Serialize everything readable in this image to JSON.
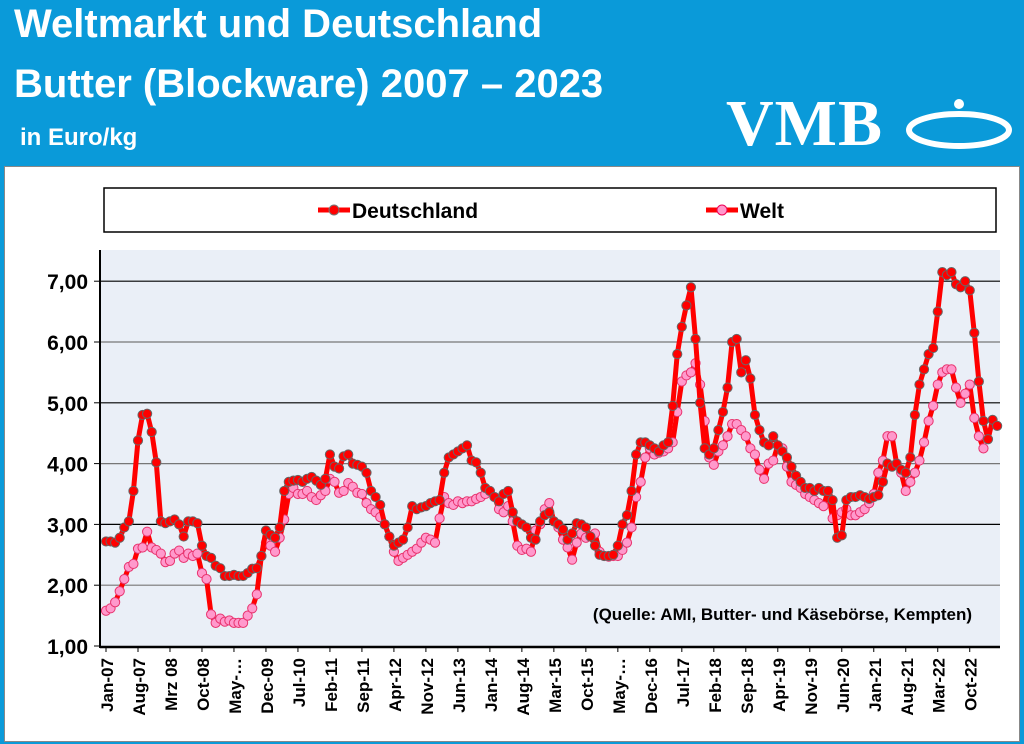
{
  "header": {
    "title_line1": "Weltmarkt und Deutschland",
    "title_line2": "Butter (Blockware) 2007 – 2023",
    "unit": "in Euro/kg",
    "logo_text": "VMB"
  },
  "chart_data": {
    "type": "line",
    "title": "Weltmarkt und Deutschland Butter (Blockware) 2007 – 2023",
    "ylabel": "in Euro/kg",
    "ylim": [
      1,
      7.5
    ],
    "y_ticks": [
      "1,00",
      "2,00",
      "3,00",
      "4,00",
      "5,00",
      "6,00",
      "7,00"
    ],
    "x_tick_labels": [
      "Jan-07",
      "Aug-07",
      "Mrz 08",
      "Oct-08",
      "May-…",
      "Dec-09",
      "Jul-10",
      "Feb-11",
      "Sep-11",
      "Apr-12",
      "Nov-12",
      "Jun-13",
      "Jan-14",
      "Aug-14",
      "Mar-15",
      "Oct-15",
      "May-…",
      "Dec-16",
      "Jul-17",
      "Feb-18",
      "Sep-18",
      "Apr-19",
      "Nov-19",
      "Jun-20",
      "Jan-21",
      "Aug-21",
      "Mar-22",
      "Oct-22"
    ],
    "grid": true,
    "legend_position": "top",
    "annotation": "(Quelle: AMI, Butter- und Käsebörse, Kempten)",
    "series": [
      {
        "name": "Deutschland",
        "color": "#ff0000",
        "values": [
          2.72,
          2.72,
          2.7,
          2.78,
          2.95,
          3.05,
          3.55,
          4.38,
          4.8,
          4.82,
          4.52,
          4.02,
          3.05,
          3.02,
          3.05,
          3.08,
          3.0,
          2.8,
          3.05,
          3.05,
          3.02,
          2.65,
          2.48,
          2.45,
          2.32,
          2.28,
          2.15,
          2.15,
          2.17,
          2.15,
          2.15,
          2.2,
          2.27,
          2.28,
          2.48,
          2.9,
          2.83,
          2.78,
          2.95,
          3.55,
          3.7,
          3.72,
          3.73,
          3.7,
          3.75,
          3.78,
          3.72,
          3.65,
          3.75,
          4.15,
          3.95,
          3.92,
          4.12,
          4.15,
          4.0,
          3.98,
          3.95,
          3.85,
          3.55,
          3.45,
          3.32,
          3.0,
          2.8,
          2.65,
          2.7,
          2.75,
          2.95,
          3.3,
          3.25,
          3.28,
          3.3,
          3.35,
          3.38,
          3.4,
          3.85,
          4.1,
          4.15,
          4.2,
          4.25,
          4.3,
          4.05,
          4.02,
          3.85,
          3.6,
          3.55,
          3.45,
          3.38,
          3.5,
          3.55,
          3.2,
          3.05,
          3.0,
          2.95,
          2.78,
          2.75,
          3.05,
          3.15,
          3.2,
          3.05,
          3.0,
          2.92,
          2.75,
          2.85,
          3.02,
          3.0,
          2.95,
          2.8,
          2.65,
          2.5,
          2.48,
          2.48,
          2.5,
          2.65,
          3.0,
          3.15,
          3.55,
          4.15,
          4.35,
          4.35,
          4.3,
          4.25,
          4.2,
          4.3,
          4.35,
          4.95,
          5.8,
          6.25,
          6.6,
          6.9,
          6.05,
          5.0,
          4.25,
          4.15,
          4.25,
          4.55,
          4.85,
          5.25,
          6.0,
          6.05,
          5.5,
          5.7,
          5.4,
          4.8,
          4.55,
          4.35,
          4.3,
          4.45,
          4.3,
          4.2,
          4.1,
          3.95,
          3.8,
          3.7,
          3.6,
          3.6,
          3.55,
          3.6,
          3.55,
          3.55,
          3.4,
          2.78,
          2.82,
          3.4,
          3.45,
          3.45,
          3.48,
          3.45,
          3.42,
          3.45,
          3.48,
          3.7,
          4.0,
          3.95,
          4.0,
          3.9,
          3.85,
          4.1,
          4.8,
          5.3,
          5.55,
          5.8,
          5.9,
          6.5,
          7.15,
          7.1,
          7.15,
          6.95,
          6.9,
          7.0,
          6.85,
          6.15,
          5.35,
          4.7,
          4.4,
          4.72,
          4.62
        ]
      },
      {
        "name": "Welt",
        "color": "#ff99cc",
        "values": [
          1.58,
          1.62,
          1.72,
          1.9,
          2.1,
          2.3,
          2.35,
          2.6,
          2.62,
          2.88,
          2.62,
          2.58,
          2.52,
          2.38,
          2.4,
          2.52,
          2.57,
          2.45,
          2.52,
          2.48,
          2.52,
          2.2,
          2.1,
          1.52,
          1.38,
          1.45,
          1.4,
          1.42,
          1.38,
          1.38,
          1.38,
          1.5,
          1.62,
          1.85,
          2.48,
          2.7,
          2.65,
          2.55,
          2.78,
          3.08,
          3.5,
          3.6,
          3.5,
          3.5,
          3.55,
          3.45,
          3.4,
          3.48,
          3.55,
          3.75,
          3.7,
          3.52,
          3.55,
          3.68,
          3.62,
          3.52,
          3.5,
          3.35,
          3.25,
          3.2,
          3.12,
          3.0,
          2.8,
          2.55,
          2.4,
          2.45,
          2.5,
          2.55,
          2.6,
          2.7,
          2.78,
          2.75,
          2.7,
          3.1,
          3.45,
          3.35,
          3.32,
          3.38,
          3.35,
          3.38,
          3.38,
          3.42,
          3.45,
          3.5,
          3.55,
          3.45,
          3.25,
          3.2,
          3.3,
          3.05,
          2.65,
          2.58,
          2.6,
          2.55,
          2.9,
          3.0,
          3.25,
          3.35,
          3.05,
          2.95,
          2.75,
          2.62,
          2.42,
          2.7,
          2.85,
          2.78,
          2.8,
          2.85,
          2.55,
          2.48,
          2.47,
          2.48,
          2.48,
          2.58,
          2.7,
          2.95,
          3.45,
          3.7,
          4.1,
          4.25,
          4.15,
          4.18,
          4.2,
          4.25,
          4.35,
          4.85,
          5.35,
          5.45,
          5.5,
          5.65,
          5.3,
          4.7,
          4.1,
          3.98,
          4.2,
          4.3,
          4.45,
          4.65,
          4.65,
          4.55,
          4.45,
          4.25,
          4.15,
          3.9,
          3.75,
          4.0,
          4.05,
          4.3,
          4.25,
          3.95,
          3.7,
          3.65,
          3.6,
          3.5,
          3.45,
          3.4,
          3.35,
          3.3,
          3.55,
          3.1,
          3.15,
          3.2,
          3.25,
          3.15,
          3.15,
          3.2,
          3.25,
          3.35,
          3.5,
          3.85,
          4.05,
          4.45,
          4.45,
          4.0,
          3.85,
          3.55,
          3.7,
          3.85,
          4.05,
          4.35,
          4.7,
          4.95,
          5.3,
          5.5,
          5.55,
          5.55,
          5.25,
          5.0,
          5.15,
          5.3,
          4.75,
          4.45,
          4.25
        ]
      }
    ]
  }
}
